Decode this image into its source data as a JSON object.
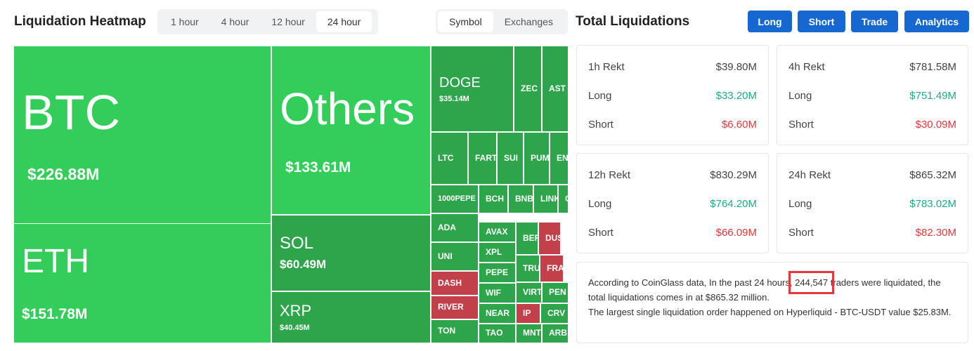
{
  "header": {
    "title": "Liquidation Heatmap",
    "time_tabs": [
      "1 hour",
      "4 hour",
      "12 hour",
      "24 hour"
    ],
    "view_tabs": [
      "Symbol",
      "Exchanges"
    ]
  },
  "heatmap": {
    "cells": [
      {
        "symbol": "BTC",
        "value": "$226.88M"
      },
      {
        "symbol": "ETH",
        "value": "$151.78M"
      },
      {
        "symbol": "Others",
        "value": "$133.61M"
      },
      {
        "symbol": "SOL",
        "value": "$60.49M"
      },
      {
        "symbol": "XRP",
        "value": "$40.45M"
      },
      {
        "symbol": "DOGE",
        "value": "$35.14M"
      },
      {
        "symbol": "ZEC"
      },
      {
        "symbol": "AST"
      },
      {
        "symbol": "LTC"
      },
      {
        "symbol": "FARTC"
      },
      {
        "symbol": "SUI"
      },
      {
        "symbol": "PUMP"
      },
      {
        "symbol": "EN"
      },
      {
        "symbol": "1000PEPE"
      },
      {
        "symbol": "BCH"
      },
      {
        "symbol": "BNB"
      },
      {
        "symbol": "LINK"
      },
      {
        "symbol": "C"
      },
      {
        "symbol": "ADA"
      },
      {
        "symbol": "UNI"
      },
      {
        "symbol": "DASH"
      },
      {
        "symbol": "RIVER"
      },
      {
        "symbol": "TON"
      },
      {
        "symbol": "AVAX"
      },
      {
        "symbol": "XPL"
      },
      {
        "symbol": "PEPE"
      },
      {
        "symbol": "WIF"
      },
      {
        "symbol": "NEAR"
      },
      {
        "symbol": "TAO"
      },
      {
        "symbol": "BER"
      },
      {
        "symbol": "DUS"
      },
      {
        "symbol": "TRU"
      },
      {
        "symbol": "FRA"
      },
      {
        "symbol": "VIRT"
      },
      {
        "symbol": "PEN"
      },
      {
        "symbol": "IP"
      },
      {
        "symbol": "CRV"
      },
      {
        "symbol": "MNT"
      },
      {
        "symbol": "ARB"
      }
    ]
  },
  "liquidations": {
    "title": "Total Liquidations",
    "buttons": [
      "Long",
      "Short",
      "Trade",
      "Analytics"
    ],
    "cards": [
      {
        "label": "1h Rekt",
        "total": "$39.80M",
        "long_label": "Long",
        "long": "$33.20M",
        "short_label": "Short",
        "short": "$6.60M"
      },
      {
        "label": "4h Rekt",
        "total": "$781.58M",
        "long_label": "Long",
        "long": "$751.49M",
        "short_label": "Short",
        "short": "$30.09M"
      },
      {
        "label": "12h Rekt",
        "total": "$830.29M",
        "long_label": "Long",
        "long": "$764.20M",
        "short_label": "Short",
        "short": "$66.09M"
      },
      {
        "label": "24h Rekt",
        "total": "$865.32M",
        "long_label": "Long",
        "long": "$783.02M",
        "short_label": "Short",
        "short": "$82.30M"
      }
    ],
    "summary": {
      "before": "According to CoinGlass data, In the past 24 hours,",
      "count": "244,547",
      "after": "traders were liquidated, the total liquidations comes in at $865.32 million.",
      "line2": "The largest single liquidation order happened on Hyperliquid - BTC-USDT value $25.83M."
    }
  }
}
